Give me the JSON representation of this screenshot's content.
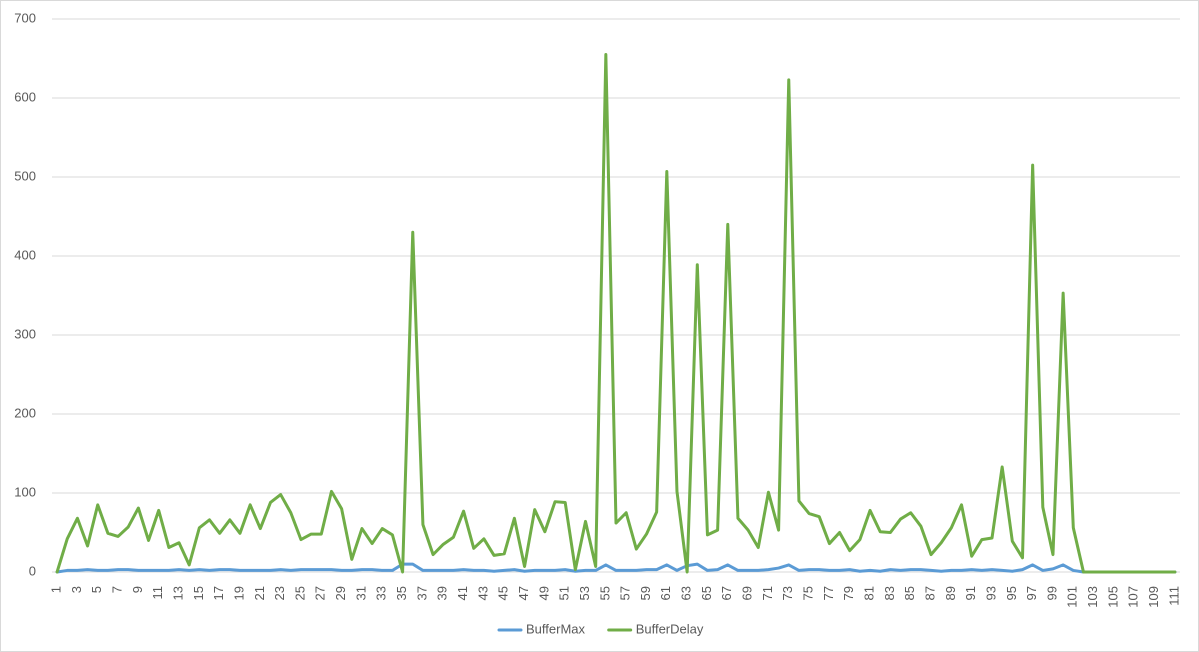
{
  "chart_data": {
    "type": "line",
    "categories": [
      1,
      null,
      3,
      null,
      5,
      null,
      7,
      null,
      9,
      null,
      11,
      null,
      13,
      null,
      15,
      null,
      17,
      null,
      19,
      null,
      21,
      null,
      23,
      null,
      25,
      null,
      27,
      null,
      29,
      null,
      31,
      null,
      33,
      null,
      35,
      null,
      37,
      null,
      39,
      null,
      41,
      null,
      43,
      null,
      45,
      null,
      47,
      null,
      49,
      null,
      51,
      null,
      53,
      null,
      55,
      null,
      57,
      null,
      59,
      null,
      61,
      null,
      63,
      null,
      65,
      null,
      67,
      null,
      69,
      null,
      71,
      null,
      73,
      null,
      75,
      null,
      77,
      null,
      79,
      null,
      81,
      null,
      83,
      null,
      85,
      null,
      87,
      null,
      89,
      null,
      91,
      null,
      93,
      null,
      95,
      null,
      97,
      null,
      99,
      null,
      101,
      null,
      103,
      null,
      105,
      null,
      107,
      null,
      109,
      null,
      111
    ],
    "series": [
      {
        "name": "BufferMax",
        "color": "#5b9bd5",
        "values": [
          0,
          2,
          2,
          3,
          2,
          2,
          3,
          3,
          2,
          2,
          2,
          2,
          3,
          2,
          3,
          2,
          3,
          3,
          2,
          2,
          2,
          2,
          3,
          2,
          3,
          3,
          3,
          3,
          2,
          2,
          3,
          3,
          2,
          2,
          10,
          10,
          2,
          2,
          2,
          2,
          3,
          2,
          2,
          1,
          2,
          3,
          1,
          2,
          2,
          2,
          3,
          1,
          2,
          2,
          9,
          2,
          2,
          2,
          3,
          3,
          9,
          2,
          8,
          10,
          2,
          3,
          9,
          2,
          2,
          2,
          3,
          5,
          9,
          2,
          3,
          3,
          2,
          2,
          3,
          1,
          2,
          1,
          3,
          2,
          3,
          3,
          2,
          1,
          2,
          2,
          3,
          2,
          3,
          2,
          1,
          3,
          9,
          2,
          4,
          9,
          2,
          0,
          0,
          0,
          0,
          0,
          0,
          0,
          0,
          0,
          0
        ]
      },
      {
        "name": "BufferDelay",
        "color": "#70ad47",
        "values": [
          0,
          42,
          68,
          33,
          85,
          49,
          45,
          57,
          81,
          40,
          78,
          31,
          37,
          9,
          56,
          66,
          49,
          66,
          49,
          85,
          55,
          88,
          98,
          75,
          41,
          48,
          48,
          102,
          80,
          16,
          55,
          36,
          55,
          47,
          0,
          430,
          60,
          22,
          35,
          44,
          77,
          30,
          42,
          21,
          23,
          68,
          7,
          79,
          51,
          89,
          88,
          3,
          64,
          7,
          655,
          62,
          75,
          29,
          48,
          76,
          507,
          102,
          0,
          389,
          47,
          53,
          440,
          68,
          53,
          31,
          101,
          53,
          623,
          90,
          74,
          70,
          36,
          50,
          27,
          41,
          78,
          51,
          50,
          67,
          75,
          58,
          22,
          37,
          56,
          85,
          20,
          41,
          43,
          133,
          39,
          18,
          515,
          82,
          22,
          353,
          56,
          0,
          0,
          0,
          0,
          0,
          0,
          0,
          0,
          0,
          0
        ]
      }
    ],
    "ylim": [
      0,
      700
    ],
    "yticks": [
      0,
      100,
      200,
      300,
      400,
      500,
      600,
      700
    ],
    "grid": true,
    "legend": "bottom"
  }
}
